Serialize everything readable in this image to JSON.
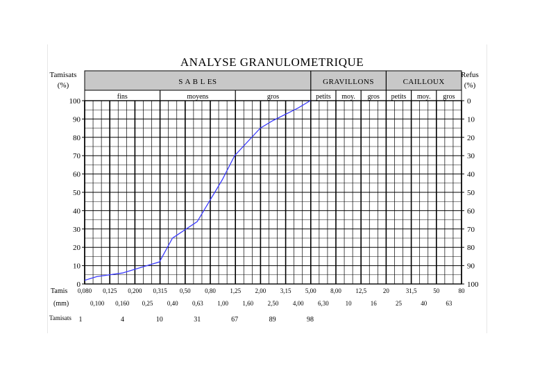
{
  "chart_data": {
    "type": "line",
    "title": "ANALYSE GRANULOMETRIQUE",
    "left_axis_label": [
      "Tamisats",
      "(%)"
    ],
    "right_axis_label": [
      "Refus",
      "(%)"
    ],
    "groups": [
      "S A B L ES",
      "GRAVILLONS",
      "CAILLOUX"
    ],
    "subgroups": [
      "fins",
      "moyens",
      "gros",
      "petits",
      "moy.",
      "gros",
      "petits",
      "moy.",
      "gros"
    ],
    "y_ticks_left": [
      "100",
      "90",
      "80",
      "70",
      "60",
      "50",
      "40",
      "30",
      "20",
      "10",
      "0"
    ],
    "y_ticks_right": [
      "0",
      "10",
      "20",
      "30",
      "40",
      "50",
      "60",
      "70",
      "80",
      "90",
      "100"
    ],
    "ylim": [
      0,
      100
    ],
    "x_scale": "log",
    "row_labels": [
      "Tamis",
      "(mm)",
      "Tamisats"
    ],
    "tamis_top": [
      "0,080",
      "0,125",
      "0,200",
      "0,315",
      "0,50",
      "0,80",
      "1,25",
      "2,00",
      "3,15",
      "5,00",
      "8,00",
      "12,5",
      "20",
      "31,5",
      "50",
      "80"
    ],
    "tamis_bottom": [
      "0,100",
      "0,160",
      "0,25",
      "0,40",
      "0,63",
      "1,00",
      "1,60",
      "2,50",
      "4,00",
      "6,30",
      "10",
      "16",
      "25",
      "40",
      "63"
    ],
    "tamisats_values": [
      "1",
      "4",
      "10",
      "31",
      "67",
      "89",
      "98"
    ],
    "series": [
      {
        "color": "#3a3aff",
        "x": [
          0.08,
          0.1,
          0.16,
          0.25,
          0.315,
          0.4,
          0.63,
          1.0,
          1.25,
          2.0,
          2.5,
          4.0,
          5.0
        ],
        "y": [
          2,
          4,
          6,
          10,
          12,
          25,
          34,
          57,
          70,
          85,
          89,
          96,
          100
        ]
      }
    ]
  }
}
